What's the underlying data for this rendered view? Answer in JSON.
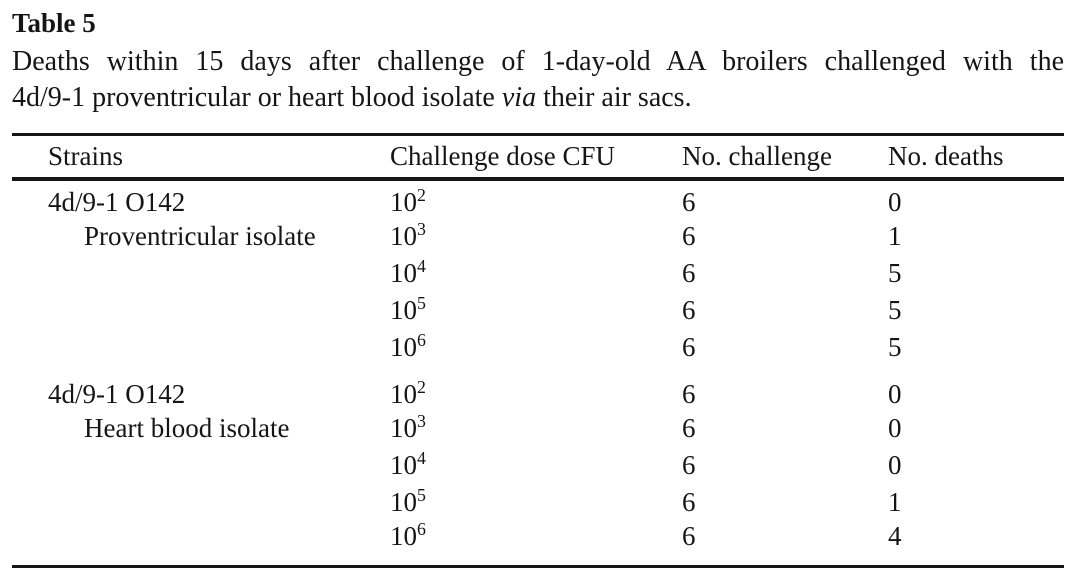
{
  "colors": {
    "background": "#ffffff",
    "text": "#151515",
    "rule": "#151515"
  },
  "paper_table": {
    "label": "Table 5",
    "caption": {
      "line1": "Deaths within 15 days after challenge of 1-day-old AA broilers challenged with the",
      "line2_before": "4d/9-1 proventricular or heart blood isolate ",
      "line2_italic": "via",
      "line2_after": " their air sacs."
    },
    "columns": {
      "strains": "Strains",
      "dose": "Challenge dose CFU",
      "challenge": "No. challenge",
      "deaths": "No. deaths"
    },
    "groups": [
      {
        "strain": "4d/9-1 O142",
        "isolate": "Proventricular isolate",
        "rows": [
          {
            "dose_base": "10",
            "dose_exp": "2",
            "challenged": "6",
            "deaths": "0"
          },
          {
            "dose_base": "10",
            "dose_exp": "3",
            "challenged": "6",
            "deaths": "1"
          },
          {
            "dose_base": "10",
            "dose_exp": "4",
            "challenged": "6",
            "deaths": "5"
          },
          {
            "dose_base": "10",
            "dose_exp": "5",
            "challenged": "6",
            "deaths": "5"
          },
          {
            "dose_base": "10",
            "dose_exp": "6",
            "challenged": "6",
            "deaths": "5"
          }
        ]
      },
      {
        "strain": "4d/9-1 O142",
        "isolate": "Heart blood isolate",
        "rows": [
          {
            "dose_base": "10",
            "dose_exp": "2",
            "challenged": "6",
            "deaths": "0"
          },
          {
            "dose_base": "10",
            "dose_exp": "3",
            "challenged": "6",
            "deaths": "0"
          },
          {
            "dose_base": "10",
            "dose_exp": "4",
            "challenged": "6",
            "deaths": "0"
          },
          {
            "dose_base": "10",
            "dose_exp": "5",
            "challenged": "6",
            "deaths": "1"
          },
          {
            "dose_base": "10",
            "dose_exp": "6",
            "challenged": "6",
            "deaths": "4"
          }
        ]
      }
    ]
  }
}
